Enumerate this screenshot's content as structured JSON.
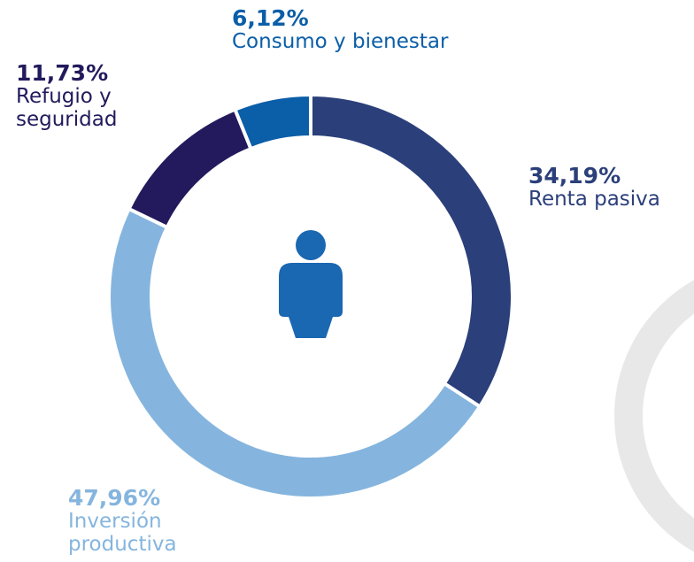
{
  "chart_data": {
    "type": "donut",
    "categories": [
      "Renta pasiva",
      "Inversión productiva",
      "Refugio y seguridad",
      "Consumo y bienestar"
    ],
    "values": [
      34.19,
      47.96,
      11.73,
      6.12
    ],
    "value_labels": [
      "34,19%",
      "47,96%",
      "11,73%",
      "6,12%"
    ],
    "colors": [
      "#2b3f7a",
      "#85b5de",
      "#221a5c",
      "#0b5ea8"
    ]
  }
}
